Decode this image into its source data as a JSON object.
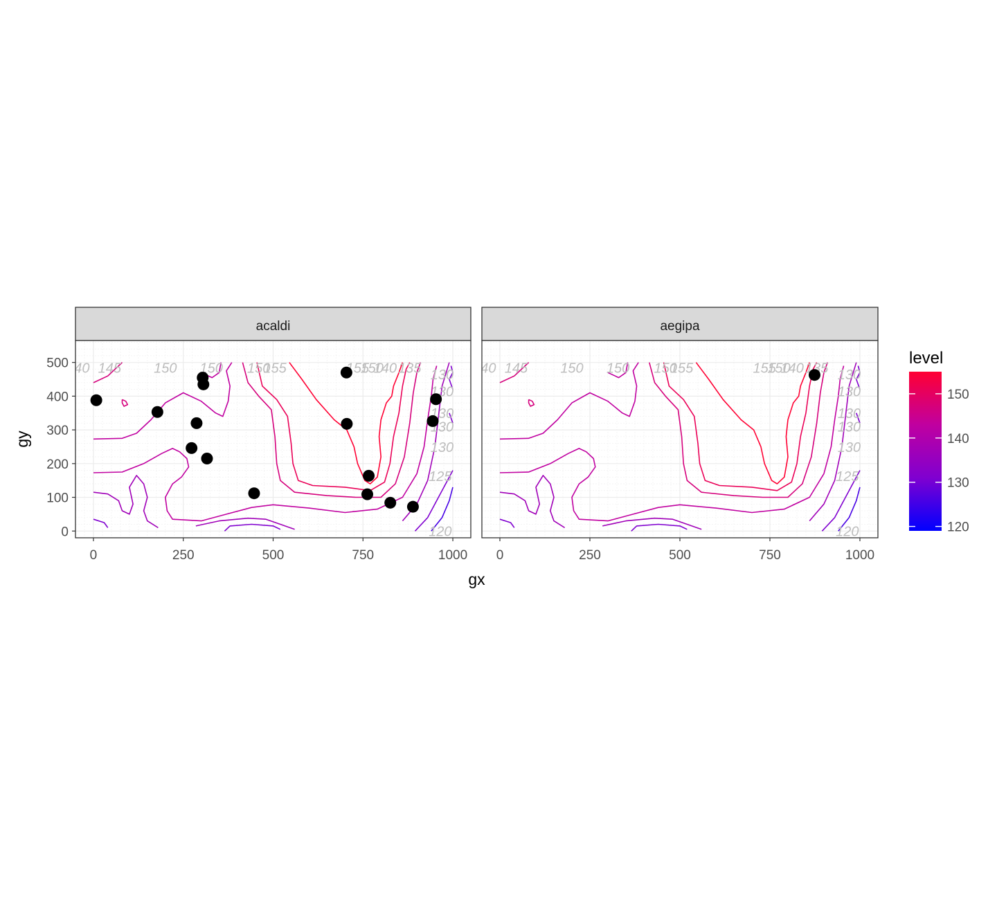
{
  "chart_data": {
    "type": "scatter",
    "overlay": "contour",
    "xlabel": "gx",
    "ylabel": "gy",
    "xlim": [
      -50,
      1050
    ],
    "ylim": [
      -20,
      565
    ],
    "x_ticks": [
      0,
      250,
      500,
      750,
      1000
    ],
    "y_ticks": [
      0,
      100,
      200,
      300,
      400,
      500
    ],
    "grid": true,
    "legend": {
      "title": "level",
      "placement": "right",
      "range": [
        119,
        155
      ],
      "ticks": [
        120,
        130,
        140,
        150
      ],
      "colors": [
        "#0000ff",
        "#8000d0",
        "#c000a0",
        "#ff0033"
      ]
    },
    "contour_levels": [
      120,
      125,
      130,
      135,
      140,
      145,
      150,
      155
    ],
    "panels": [
      {
        "title": "acaldi",
        "points": [
          [
            8,
            388
          ],
          [
            178,
            353
          ],
          [
            304,
            455
          ],
          [
            306,
            435
          ],
          [
            287,
            320
          ],
          [
            273,
            246
          ],
          [
            316,
            215
          ],
          [
            447,
            112
          ],
          [
            704,
            470
          ],
          [
            705,
            318
          ],
          [
            766,
            164
          ],
          [
            762,
            109
          ],
          [
            826,
            84
          ],
          [
            889,
            72
          ],
          [
            953,
            391
          ],
          [
            944,
            326
          ]
        ],
        "contour_labels": [
          {
            "text": "40",
            "x": -32,
            "y": 470
          },
          {
            "text": "145",
            "x": 45,
            "y": 470
          },
          {
            "text": "150",
            "x": 200,
            "y": 470
          },
          {
            "text": "150",
            "x": 328,
            "y": 470
          },
          {
            "text": "150",
            "x": 460,
            "y": 470
          },
          {
            "text": "155",
            "x": 505,
            "y": 470
          },
          {
            "text": "155",
            "x": 735,
            "y": 470
          },
          {
            "text": "150",
            "x": 775,
            "y": 470
          },
          {
            "text": "140",
            "x": 812,
            "y": 470
          },
          {
            "text": "135",
            "x": 880,
            "y": 470
          },
          {
            "text": "130",
            "x": 970,
            "y": 450
          },
          {
            "text": "130",
            "x": 970,
            "y": 400
          },
          {
            "text": "130",
            "x": 970,
            "y": 335
          },
          {
            "text": "130",
            "x": 970,
            "y": 295
          },
          {
            "text": "130",
            "x": 970,
            "y": 235
          },
          {
            "text": "125",
            "x": 965,
            "y": 148
          },
          {
            "text": "120",
            "x": 965,
            "y": -15
          }
        ]
      },
      {
        "title": "aegipa",
        "points": [
          [
            874,
            463
          ]
        ],
        "contour_labels": [
          {
            "text": "40",
            "x": -32,
            "y": 470
          },
          {
            "text": "145",
            "x": 45,
            "y": 470
          },
          {
            "text": "150",
            "x": 200,
            "y": 470
          },
          {
            "text": "150",
            "x": 328,
            "y": 470
          },
          {
            "text": "150",
            "x": 460,
            "y": 470
          },
          {
            "text": "155",
            "x": 505,
            "y": 470
          },
          {
            "text": "155",
            "x": 735,
            "y": 470
          },
          {
            "text": "150",
            "x": 775,
            "y": 470
          },
          {
            "text": "140",
            "x": 812,
            "y": 470
          },
          {
            "text": "135",
            "x": 880,
            "y": 470
          },
          {
            "text": "130",
            "x": 970,
            "y": 450
          },
          {
            "text": "130",
            "x": 970,
            "y": 400
          },
          {
            "text": "130",
            "x": 970,
            "y": 335
          },
          {
            "text": "130",
            "x": 970,
            "y": 295
          },
          {
            "text": "130",
            "x": 970,
            "y": 235
          },
          {
            "text": "125",
            "x": 965,
            "y": 148
          },
          {
            "text": "120",
            "x": 965,
            "y": -15
          }
        ]
      }
    ],
    "contours": [
      {
        "level": 155,
        "points": [
          [
            545,
            500
          ],
          [
            580,
            450
          ],
          [
            620,
            390
          ],
          [
            670,
            330
          ],
          [
            705,
            300
          ],
          [
            725,
            250
          ],
          [
            735,
            200
          ],
          [
            755,
            150
          ],
          [
            770,
            140
          ],
          [
            790,
            160
          ],
          [
            800,
            220
          ],
          [
            795,
            280
          ],
          [
            800,
            330
          ],
          [
            815,
            380
          ],
          [
            830,
            400
          ],
          [
            835,
            430
          ],
          [
            850,
            470
          ],
          [
            860,
            500
          ]
        ]
      },
      {
        "level": 150,
        "points": [
          [
            455,
            500
          ],
          [
            470,
            430
          ],
          [
            510,
            390
          ],
          [
            540,
            340
          ],
          [
            550,
            260
          ],
          [
            555,
            200
          ],
          [
            570,
            150
          ],
          [
            610,
            135
          ],
          [
            700,
            130
          ],
          [
            770,
            120
          ],
          [
            810,
            145
          ],
          [
            825,
            200
          ],
          [
            835,
            280
          ],
          [
            850,
            350
          ],
          [
            860,
            430
          ],
          [
            870,
            480
          ],
          [
            880,
            500
          ]
        ]
      },
      {
        "level": 145,
        "points": [
          [
            415,
            500
          ],
          [
            430,
            440
          ],
          [
            460,
            400
          ],
          [
            495,
            360
          ],
          [
            505,
            280
          ],
          [
            510,
            200
          ],
          [
            520,
            150
          ],
          [
            560,
            115
          ],
          [
            650,
            105
          ],
          [
            730,
            100
          ],
          [
            800,
            100
          ],
          [
            840,
            140
          ],
          [
            865,
            220
          ],
          [
            880,
            320
          ],
          [
            890,
            410
          ],
          [
            900,
            470
          ],
          [
            910,
            500
          ]
        ]
      },
      {
        "level": 140,
        "points": [
          [
            0,
            273
          ],
          [
            80,
            275
          ],
          [
            120,
            290
          ],
          [
            160,
            330
          ],
          [
            200,
            380
          ],
          [
            250,
            410
          ],
          [
            300,
            385
          ],
          [
            340,
            350
          ],
          [
            360,
            340
          ],
          [
            375,
            385
          ],
          [
            380,
            430
          ],
          [
            370,
            475
          ],
          [
            385,
            500
          ]
        ]
      },
      {
        "level": 140,
        "points": [
          [
            0,
            173
          ],
          [
            80,
            175
          ],
          [
            140,
            200
          ],
          [
            190,
            230
          ],
          [
            220,
            245
          ],
          [
            240,
            235
          ],
          [
            260,
            215
          ],
          [
            265,
            190
          ],
          [
            245,
            160
          ],
          [
            220,
            140
          ],
          [
            200,
            100
          ],
          [
            205,
            60
          ],
          [
            220,
            35
          ],
          [
            300,
            30
          ],
          [
            370,
            50
          ],
          [
            440,
            70
          ],
          [
            500,
            78
          ],
          [
            600,
            68
          ],
          [
            700,
            55
          ],
          [
            790,
            65
          ],
          [
            860,
            100
          ],
          [
            900,
            170
          ],
          [
            920,
            250
          ],
          [
            930,
            330
          ],
          [
            940,
            400
          ],
          [
            945,
            450
          ],
          [
            955,
            490
          ]
        ]
      },
      {
        "level": 135,
        "points": [
          [
            285,
            15
          ],
          [
            350,
            30
          ],
          [
            430,
            38
          ],
          [
            480,
            35
          ],
          [
            520,
            20
          ],
          [
            560,
            5
          ]
        ]
      },
      {
        "level": 135,
        "points": [
          [
            0,
            115
          ],
          [
            40,
            110
          ],
          [
            70,
            90
          ],
          [
            80,
            60
          ],
          [
            100,
            50
          ],
          [
            110,
            80
          ],
          [
            100,
            130
          ],
          [
            120,
            165
          ],
          [
            140,
            140
          ],
          [
            150,
            100
          ],
          [
            140,
            60
          ],
          [
            150,
            30
          ],
          [
            180,
            10
          ]
        ]
      },
      {
        "level": 135,
        "points": [
          [
            860,
            30
          ],
          [
            900,
            80
          ],
          [
            930,
            150
          ],
          [
            950,
            250
          ],
          [
            960,
            340
          ],
          [
            970,
            430
          ],
          [
            990,
            500
          ]
        ]
      },
      {
        "level": 130,
        "points": [
          [
            365,
            0
          ],
          [
            380,
            15
          ],
          [
            440,
            20
          ],
          [
            500,
            15
          ],
          [
            520,
            5
          ]
        ]
      },
      {
        "level": 130,
        "points": [
          [
            0,
            35
          ],
          [
            30,
            25
          ],
          [
            40,
            10
          ]
        ]
      },
      {
        "level": 130,
        "points": [
          [
            895,
            0
          ],
          [
            930,
            40
          ],
          [
            960,
            100
          ],
          [
            985,
            150
          ],
          [
            1000,
            180
          ]
        ]
      },
      {
        "level": 130,
        "points": [
          [
            995,
            490
          ],
          [
            1000,
            470
          ],
          [
            990,
            450
          ],
          [
            1000,
            420
          ]
        ]
      },
      {
        "level": 130,
        "points": [
          [
            990,
            350
          ],
          [
            1000,
            320
          ]
        ]
      },
      {
        "level": 125,
        "points": [
          [
            940,
            0
          ],
          [
            970,
            40
          ],
          [
            990,
            90
          ],
          [
            1000,
            130
          ]
        ]
      },
      {
        "level": 145,
        "points": [
          [
            0,
            440
          ],
          [
            40,
            460
          ],
          [
            80,
            500
          ]
        ]
      },
      {
        "level": 145,
        "points": [
          [
            80,
            390
          ],
          [
            90,
            385
          ],
          [
            95,
            375
          ],
          [
            85,
            370
          ],
          [
            80,
            380
          ],
          [
            80,
            390
          ]
        ]
      },
      {
        "level": 140,
        "points": [
          [
            300,
            470
          ],
          [
            330,
            455
          ],
          [
            350,
            470
          ],
          [
            355,
            500
          ]
        ]
      }
    ]
  }
}
